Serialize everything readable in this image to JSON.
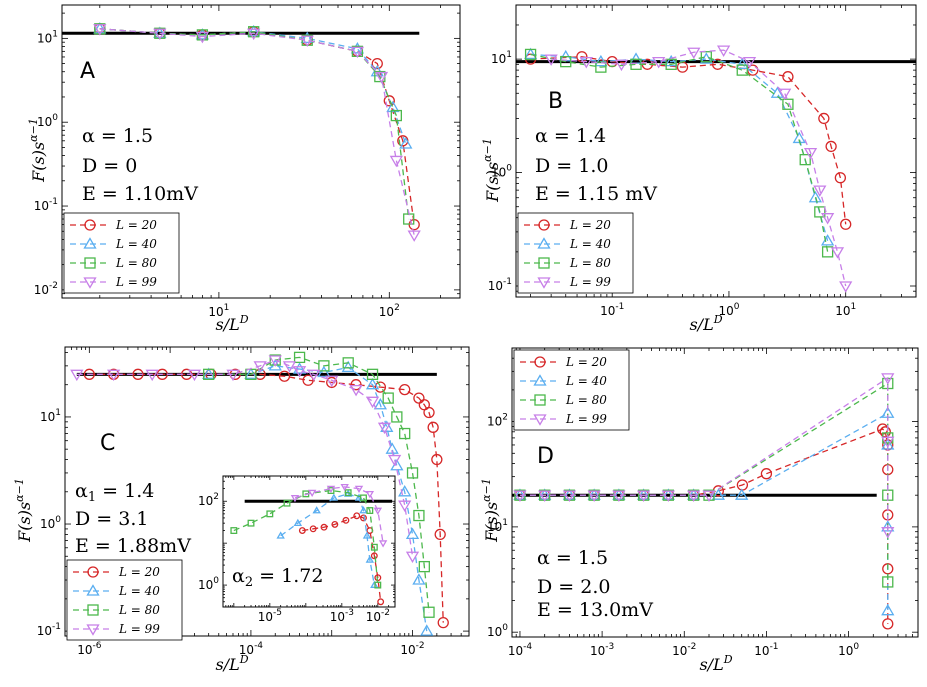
{
  "chart_data": [
    {
      "panel": "A",
      "type": "line",
      "xscale": "log",
      "yscale": "log",
      "xlim": [
        1.2,
        260
      ],
      "ylim": [
        0.008,
        25
      ],
      "xlabel": "s/L^D",
      "ylabel": "F(s)s^(α−1)",
      "xticks": [
        10,
        100
      ],
      "xticklabels": [
        "10^1",
        "10^2"
      ],
      "yticks": [
        0.01,
        0.1,
        1,
        10
      ],
      "yticklabels": [
        "10^-2",
        "10^-1",
        "10^0",
        "10^1"
      ],
      "params": [
        "α = 1.5",
        "D = 0",
        "E = 1.10mV"
      ],
      "reference_line": {
        "y": 11.5,
        "x_range": [
          1.2,
          150
        ]
      },
      "legend_position": "lower-left",
      "series": [
        {
          "name": "L = 20",
          "marker": "circle",
          "color": "#d62728",
          "x": [
            2,
            4.5,
            8,
            16,
            33,
            65,
            85,
            100,
            120,
            140
          ],
          "y": [
            13,
            11.5,
            11,
            12,
            9.5,
            7,
            5,
            1.8,
            0.6,
            0.06
          ]
        },
        {
          "name": "L = 40",
          "marker": "triangle-up",
          "color": "#5aaef0",
          "x": [
            2,
            4.5,
            8,
            16,
            33,
            65,
            85,
            105,
            125
          ],
          "y": [
            13,
            11.5,
            11,
            12,
            10,
            7.5,
            4,
            1.5,
            0.55
          ]
        },
        {
          "name": "L = 80",
          "marker": "square",
          "color": "#4cb84c",
          "x": [
            2,
            4.5,
            8,
            16,
            33,
            65,
            88,
            110,
            130
          ],
          "y": [
            13,
            11.5,
            11,
            12,
            9.5,
            7,
            3.5,
            1.2,
            0.07
          ]
        },
        {
          "name": "L = 99",
          "marker": "triangle-down",
          "color": "#c77fe8",
          "x": [
            2,
            4.5,
            8,
            16,
            33,
            65,
            90,
            110,
            140
          ],
          "y": [
            13,
            11.5,
            10.5,
            11.5,
            9.5,
            7,
            3.5,
            0.35,
            0.045
          ]
        }
      ]
    },
    {
      "panel": "B",
      "type": "line",
      "xscale": "log",
      "yscale": "log",
      "xlim": [
        0.015,
        40
      ],
      "ylim": [
        0.08,
        30
      ],
      "xlabel": "s/L^D",
      "ylabel": "F(s)s^(α−1)",
      "xticks": [
        0.1,
        1,
        10
      ],
      "xticklabels": [
        "10^-1",
        "10^0",
        "10^1"
      ],
      "yticks": [
        0.1,
        1,
        10
      ],
      "yticklabels": [
        "10^-1",
        "10^0",
        "10^1"
      ],
      "params": [
        "α = 1.4",
        "D = 1.0",
        "E = 1.15 mV"
      ],
      "reference_line": {
        "y": 9.5,
        "x_range": [
          0.015,
          40
        ]
      },
      "legend_position": "lower-left",
      "series": [
        {
          "name": "L = 20",
          "marker": "circle",
          "color": "#d62728",
          "x": [
            0.02,
            0.055,
            0.1,
            0.2,
            0.4,
            0.8,
            1.6,
            3.2,
            6.5,
            7.5,
            9,
            10
          ],
          "y": [
            10,
            10.5,
            9.5,
            9,
            8.5,
            9,
            8,
            7,
            3,
            1.7,
            0.9,
            0.35
          ]
        },
        {
          "name": "L = 40",
          "marker": "triangle-up",
          "color": "#5aaef0",
          "x": [
            0.02,
            0.04,
            0.08,
            0.16,
            0.32,
            0.64,
            1.3,
            2.6,
            4,
            5.5,
            7
          ],
          "y": [
            11,
            10.5,
            9.5,
            10,
            9.5,
            10,
            9,
            5,
            2,
            0.6,
            0.25
          ]
        },
        {
          "name": "L = 80",
          "marker": "square",
          "color": "#4cb84c",
          "x": [
            0.02,
            0.04,
            0.08,
            0.16,
            0.32,
            0.64,
            1.3,
            3.2,
            4.5,
            6,
            7
          ],
          "y": [
            11,
            9.5,
            8.5,
            9,
            9,
            10.5,
            8,
            4,
            1.3,
            0.45,
            0.2
          ]
        },
        {
          "name": "L = 99",
          "marker": "triangle-down",
          "color": "#c77fe8",
          "x": [
            0.03,
            0.06,
            0.12,
            0.25,
            0.5,
            0.9,
            1.5,
            3,
            5,
            6,
            7,
            8.5,
            10
          ],
          "y": [
            10,
            9.5,
            9,
            9.5,
            11.5,
            12,
            9.5,
            5,
            1.5,
            0.7,
            0.4,
            0.2,
            0.1
          ]
        }
      ]
    },
    {
      "panel": "C",
      "type": "line",
      "xscale": "log",
      "yscale": "log",
      "xlim": [
        5e-07,
        0.05
      ],
      "ylim": [
        0.09,
        45
      ],
      "xlabel": "s/L^D",
      "ylabel": "F(s)s^(α−1)",
      "xticks": [
        1e-06,
        0.0001,
        0.01
      ],
      "xticklabels": [
        "10^-6",
        "10^-4",
        "10^-2"
      ],
      "yticks": [
        0.1,
        1,
        10
      ],
      "yticklabels": [
        "10^-1",
        "10^0",
        "10^1"
      ],
      "params": [
        "α1 = 1.4",
        "D = 3.1",
        "E = 1.88mV"
      ],
      "reference_line": {
        "y": 25,
        "x_range": [
          7e-07,
          0.02
        ]
      },
      "legend_position": "lower-left",
      "series": [
        {
          "name": "L = 20",
          "marker": "circle",
          "color": "#d62728",
          "x": [
            1e-06,
            2e-06,
            4e-06,
            8e-06,
            1.6e-05,
            3.2e-05,
            6.4e-05,
            0.00013,
            0.00026,
            0.00051,
            0.001,
            0.002,
            0.004,
            0.008,
            0.012,
            0.014,
            0.016,
            0.018,
            0.02,
            0.022,
            0.024
          ],
          "y": [
            25,
            25,
            25,
            25,
            25,
            25,
            25,
            25,
            24,
            22,
            21,
            20,
            19,
            18,
            15,
            13,
            11,
            8,
            4,
            0.8,
            0.12
          ]
        },
        {
          "name": "L = 40",
          "marker": "triangle-up",
          "color": "#5aaef0",
          "x": [
            3e-05,
            0.0001,
            0.0002,
            0.0004,
            0.0008,
            0.0016,
            0.0032,
            0.004,
            0.0048,
            0.0056,
            0.0064,
            0.008,
            0.01,
            0.012,
            0.015
          ],
          "y": [
            25,
            25,
            30,
            28,
            26,
            29,
            20,
            13,
            8,
            5,
            3.5,
            2,
            0.8,
            0.3,
            0.1
          ]
        },
        {
          "name": "L = 80",
          "marker": "square",
          "color": "#4cb84c",
          "x": [
            3e-05,
            0.0001,
            0.0002,
            0.0004,
            0.0008,
            0.0016,
            0.0032,
            0.005,
            0.0064,
            0.008,
            0.01,
            0.012,
            0.014,
            0.016
          ],
          "y": [
            25,
            25,
            34,
            36,
            30,
            32,
            25,
            15,
            10,
            7,
            3,
            1.2,
            0.4,
            0.15
          ]
        },
        {
          "name": "L = 99",
          "marker": "triangle-down",
          "color": "#c77fe8",
          "x": [
            7e-07,
            2e-06,
            6e-06,
            2e-05,
            6e-05,
            0.00013,
            0.0002,
            0.0003,
            0.0004,
            0.0006,
            0.001,
            0.002,
            0.0032,
            0.0045,
            0.006,
            0.008,
            0.01
          ],
          "y": [
            25,
            25,
            25,
            25,
            25,
            30,
            34,
            30,
            27,
            25,
            22,
            18,
            14,
            8,
            4,
            1.5,
            0.5
          ]
        }
      ],
      "inset": {
        "type": "line",
        "xscale": "log",
        "yscale": "log",
        "xlim": [
          5e-07,
          0.03
        ],
        "ylim": [
          0.3,
          400
        ],
        "xticks": [
          1e-05,
          0.001,
          0.01
        ],
        "xticklabels": [
          "10^-5",
          "10^-3",
          "10^-2"
        ],
        "yticks": [
          1,
          100
        ],
        "yticklabels": [
          "10^0",
          "10^2"
        ],
        "label": "α2 = 1.72",
        "reference_line": {
          "y": 100,
          "x_range": [
            2e-06,
            0.025
          ]
        },
        "series": [
          {
            "name": "L = 20",
            "marker": "circle",
            "color": "#d62728",
            "x": [
              8e-05,
              0.00016,
              0.00032,
              0.00064,
              0.0013,
              0.0026,
              0.004,
              0.006,
              0.008,
              0.01,
              0.012
            ],
            "y": [
              20,
              22,
              24,
              28,
              35,
              45,
              40,
              20,
              5,
              1.5,
              0.4
            ]
          },
          {
            "name": "L = 40",
            "marker": "triangle-up",
            "color": "#5aaef0",
            "x": [
              2e-05,
              6e-05,
              0.0002,
              0.0006,
              0.0015,
              0.003,
              0.004,
              0.005,
              0.006,
              0.008
            ],
            "y": [
              15,
              30,
              60,
              120,
              150,
              120,
              60,
              15,
              4,
              1
            ]
          },
          {
            "name": "L = 80",
            "marker": "square",
            "color": "#4cb84c",
            "x": [
              1e-06,
              3e-06,
              1e-05,
              3e-05,
              0.0001,
              0.0005,
              0.0015,
              0.004,
              0.006,
              0.008,
              0.01
            ],
            "y": [
              20,
              30,
              50,
              90,
              150,
              180,
              160,
              120,
              60,
              8,
              1
            ]
          },
          {
            "name": "L = 99",
            "marker": "triangle-down",
            "color": "#c77fe8",
            "x": [
              5e-05,
              0.00015,
              0.0005,
              0.0012,
              0.003,
              0.006,
              0.01,
              0.014
            ],
            "y": [
              120,
              160,
              200,
              220,
              200,
              150,
              60,
              10
            ]
          }
        ]
      }
    },
    {
      "panel": "D",
      "type": "line",
      "xscale": "log",
      "yscale": "log",
      "xlim": [
        8e-05,
        7
      ],
      "ylim": [
        0.9,
        500
      ],
      "xlabel": "s/L^D",
      "ylabel": "F(s)s^(α−1)",
      "xticks": [
        0.0001,
        0.001,
        0.01,
        0.1,
        1
      ],
      "xticklabels": [
        "10^-4",
        "10^-3",
        "10^-2",
        "10^-1",
        "10^0"
      ],
      "yticks": [
        1,
        10,
        100
      ],
      "yticklabels": [
        "10^0",
        "10^1",
        "10^2"
      ],
      "params": [
        "α = 1.5",
        "D = 2.0",
        "E = 13.0mV"
      ],
      "reference_line": {
        "y": 20,
        "x_range": [
          8e-05,
          2.2
        ]
      },
      "legend_position": "upper-left",
      "series": [
        {
          "name": "L = 20",
          "marker": "circle",
          "color": "#d62728",
          "x": [
            0.0001,
            0.0002,
            0.0004,
            0.0008,
            0.0016,
            0.0032,
            0.0064,
            0.013,
            0.026,
            0.051,
            0.1,
            2.6,
            2.8,
            3,
            3,
            3,
            3,
            3
          ],
          "y": [
            20,
            20,
            20,
            20,
            20,
            20,
            20,
            20,
            22,
            25,
            32,
            85,
            80,
            60,
            35,
            13,
            4,
            1.2
          ]
        },
        {
          "name": "L = 40",
          "marker": "triangle-up",
          "color": "#5aaef0",
          "x": [
            0.0001,
            0.0002,
            0.0004,
            0.0008,
            0.0016,
            0.0032,
            0.0064,
            0.013,
            0.026,
            0.05,
            3,
            3,
            3,
            3
          ],
          "y": [
            20,
            20,
            20,
            20,
            20,
            20,
            20,
            20,
            20,
            20,
            120,
            60,
            10,
            1.6
          ]
        },
        {
          "name": "L = 80",
          "marker": "square",
          "color": "#4cb84c",
          "x": [
            0.0001,
            0.0002,
            0.0004,
            0.0008,
            0.0016,
            0.0032,
            0.0064,
            0.013,
            0.02,
            3,
            3,
            3,
            3
          ],
          "y": [
            20,
            20,
            20,
            20,
            20,
            20,
            20,
            20,
            20,
            230,
            70,
            20,
            3
          ]
        },
        {
          "name": "L = 99",
          "marker": "triangle-down",
          "color": "#c77fe8",
          "x": [
            0.0001,
            0.0002,
            0.0004,
            0.0008,
            0.0016,
            0.0032,
            0.0064,
            0.013,
            0.02,
            3,
            3,
            3
          ],
          "y": [
            20,
            20,
            20,
            20,
            20,
            20,
            20,
            20,
            20,
            260,
            65,
            9
          ]
        }
      ]
    }
  ]
}
